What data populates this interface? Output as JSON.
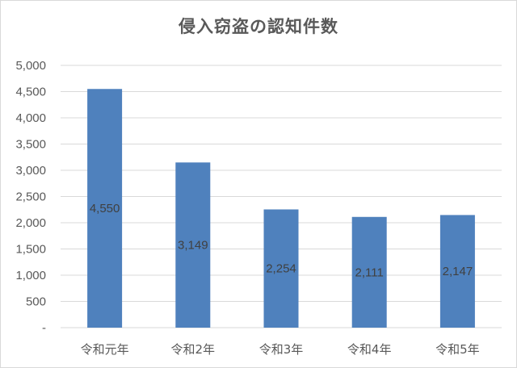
{
  "chart_data": {
    "type": "bar",
    "title": "侵入窃盗の認知件数",
    "categories": [
      "令和元年",
      "令和2年",
      "令和3年",
      "令和4年",
      "令和5年"
    ],
    "values": [
      4550,
      3149,
      2254,
      2111,
      2147
    ],
    "data_labels": [
      "4,550",
      "3,149",
      "2,254",
      "2,111",
      "2,147"
    ],
    "y_ticks": [
      0,
      500,
      1000,
      1500,
      2000,
      2500,
      3000,
      3500,
      4000,
      4500,
      5000
    ],
    "y_tick_labels": [
      "-",
      "500",
      "1,000",
      "1,500",
      "2,000",
      "2,500",
      "3,000",
      "3,500",
      "4,000",
      "4,500",
      "5,000"
    ],
    "ylim": [
      0,
      5000
    ],
    "xlabel": "",
    "ylabel": "",
    "grid": true,
    "legend": false,
    "bar_color": "#4f81bd",
    "grid_color": "#d9d9d9"
  }
}
